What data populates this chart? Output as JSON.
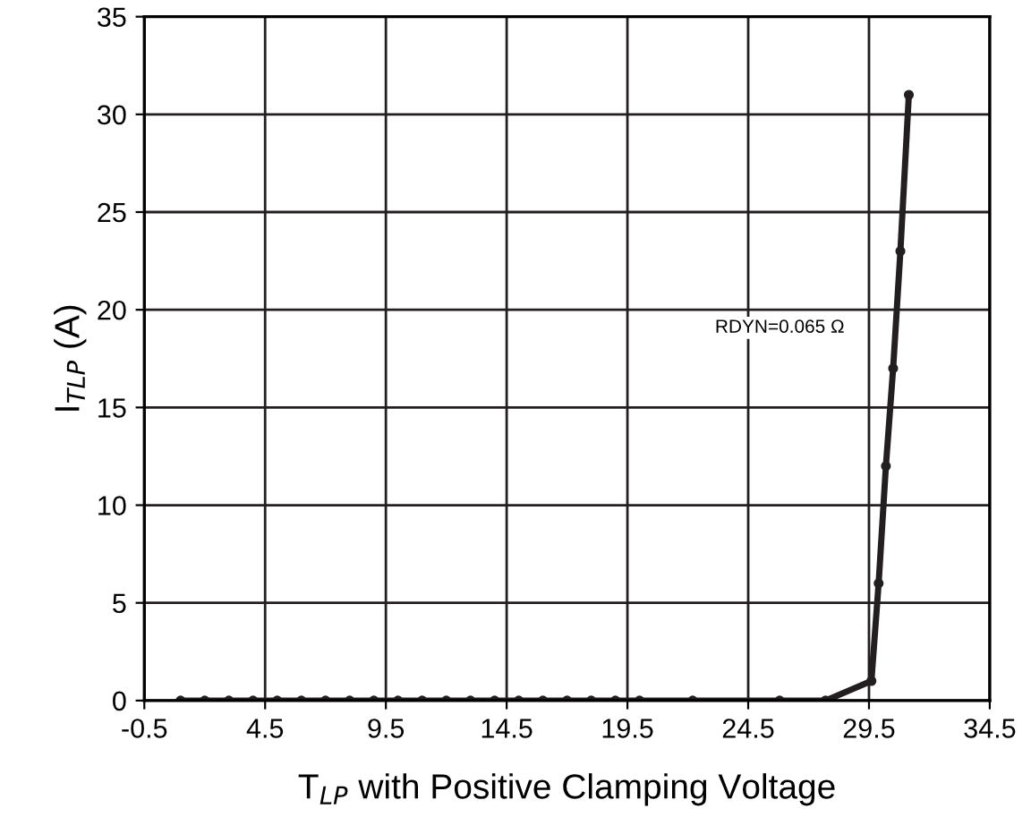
{
  "chart_data": {
    "type": "line",
    "xlabel": "T$_{LP}$ with Positive Clamping Voltage",
    "ylabel": "I$_{TLP}$ (A)",
    "series": [
      {
        "color": "#231f20",
        "x": [
          1,
          2,
          3,
          4,
          5,
          6,
          7,
          8,
          9,
          10,
          11,
          12,
          13,
          14,
          15,
          16,
          17,
          18,
          19,
          20,
          22.2,
          25.8,
          27.7,
          29.6,
          29.9,
          30.2,
          30.5,
          30.8,
          31.15
        ],
        "values": [
          0,
          0,
          0,
          0,
          0,
          0,
          0,
          0,
          0,
          0,
          0,
          0,
          0,
          0,
          0,
          0,
          0,
          0,
          0,
          0,
          0,
          0,
          0,
          1,
          6,
          12,
          17,
          23,
          31
        ]
      }
    ],
    "xlim": [
      -0.5,
      34.5
    ],
    "xticks": [
      -0.5,
      4.5,
      9.5,
      14.5,
      19.5,
      24.5,
      29.5,
      34.5
    ],
    "ylim": [
      0,
      35
    ],
    "yticks": [
      0,
      5,
      10,
      15,
      20,
      25,
      30,
      35
    ],
    "grid": true,
    "marker": "circle",
    "line_style": "solid",
    "annotations": [
      "RDYN=0.065 Ω"
    ]
  }
}
